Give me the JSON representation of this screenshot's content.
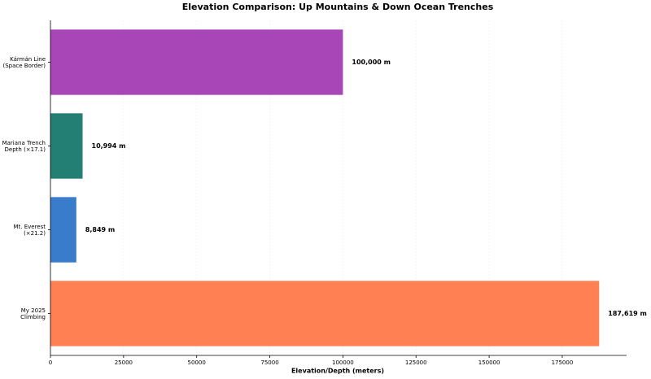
{
  "chart_data": {
    "type": "hbar",
    "title": "Elevation Comparison: Up Mountains & Down Ocean Trenches",
    "xlabel": "Elevation/Depth (meters)",
    "categories": [
      "Kármán Line\n(Space Border)",
      "Mariana Trench\nDepth (×17.1)",
      "Mt. Everest\n(×21.2)",
      "My 2025\nClimbing"
    ],
    "values": [
      100000,
      10994,
      8849,
      187619
    ],
    "value_labels": [
      "100,000 m",
      "10,994 m",
      "8,849 m",
      "187,619 m"
    ],
    "colors": [
      "#a846b8",
      "#237f74",
      "#3a7ccc",
      "#ff8153"
    ],
    "xlim": [
      0,
      197000
    ],
    "xticks": [
      0,
      25000,
      50000,
      75000,
      100000,
      125000,
      150000,
      175000
    ],
    "grid": true
  }
}
